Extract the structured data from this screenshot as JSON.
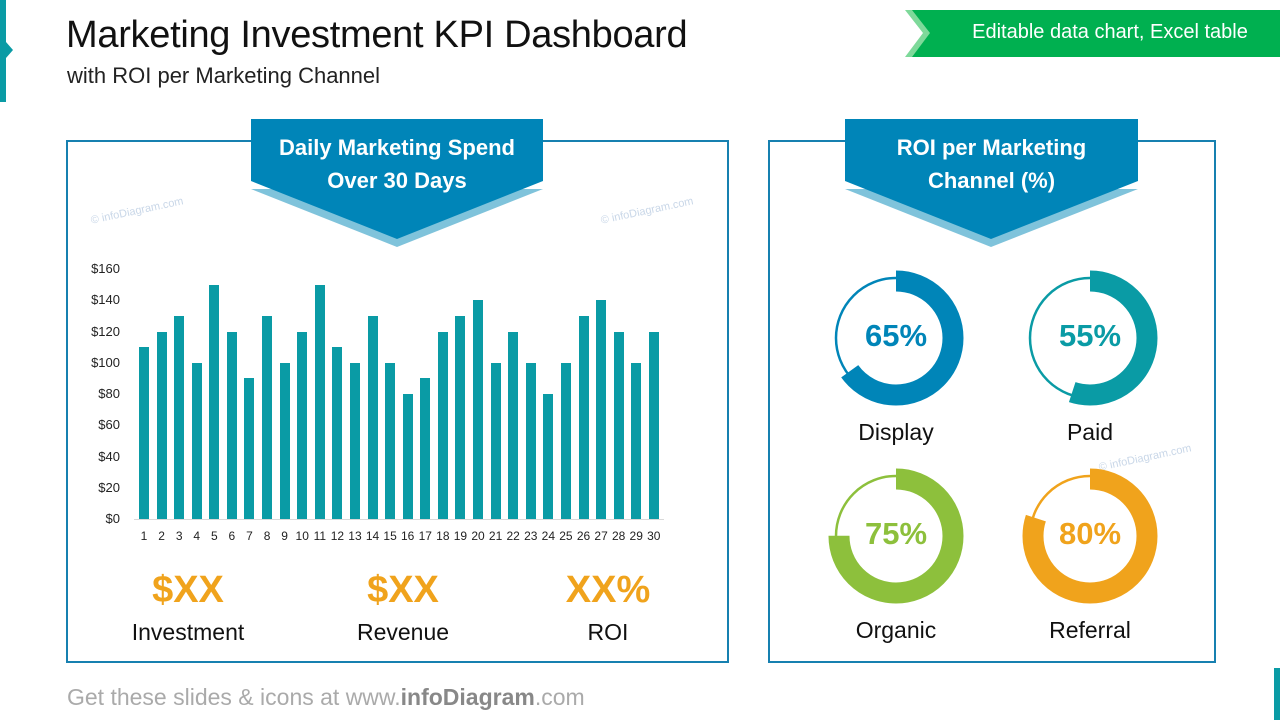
{
  "header": {
    "title": "Marketing Investment KPI Dashboard",
    "subtitle": "with ROI per Marketing Channel",
    "tag": "Editable data chart, Excel table"
  },
  "watermark": "© infoDiagram.com",
  "spend_panel": {
    "title_line1": "Daily Marketing Spend",
    "title_line2": "Over 30 Days"
  },
  "chart_data": {
    "type": "bar",
    "categories": [
      "1",
      "2",
      "3",
      "4",
      "5",
      "6",
      "7",
      "8",
      "9",
      "10",
      "11",
      "12",
      "13",
      "14",
      "15",
      "16",
      "17",
      "18",
      "19",
      "20",
      "21",
      "22",
      "23",
      "24",
      "25",
      "26",
      "27",
      "28",
      "29",
      "30"
    ],
    "values": [
      110,
      120,
      130,
      100,
      150,
      120,
      90,
      130,
      100,
      120,
      150,
      110,
      100,
      130,
      100,
      80,
      90,
      120,
      130,
      140,
      100,
      120,
      100,
      80,
      100,
      130,
      140,
      120,
      100,
      120
    ],
    "ylim": [
      0,
      160
    ],
    "yticks": [
      "$0",
      "$20",
      "$40",
      "$60",
      "$80",
      "$100",
      "$120",
      "$140",
      "$160"
    ],
    "grid": false,
    "color": "#0A9BA5"
  },
  "kpis": [
    {
      "value": "$XX",
      "label": "Investment"
    },
    {
      "value": "$XX",
      "label": "Revenue"
    },
    {
      "value": "XX%",
      "label": "ROI"
    }
  ],
  "roi_panel": {
    "title_line1": "ROI per Marketing",
    "title_line2": "Channel (%)"
  },
  "channels": [
    {
      "label": "Display",
      "percent": 65,
      "text": "65%",
      "color": "#0085B8"
    },
    {
      "label": "Paid",
      "percent": 55,
      "text": "55%",
      "color": "#0A9BA5"
    },
    {
      "label": "Organic",
      "percent": 75,
      "text": "75%",
      "color": "#8DC03C"
    },
    {
      "label": "Referral",
      "percent": 80,
      "text": "80%",
      "color": "#F0A31C"
    }
  ],
  "footer": {
    "pre": "Get these slides & icons at www.",
    "brand": "infoDiagram",
    ".com": ".com"
  },
  "colors": {
    "accent": "#0A9BA5",
    "banner": "#0085B8",
    "banner_light": "#7FC3DB",
    "tag": "#00B050",
    "kpi": "#F0A31C"
  }
}
